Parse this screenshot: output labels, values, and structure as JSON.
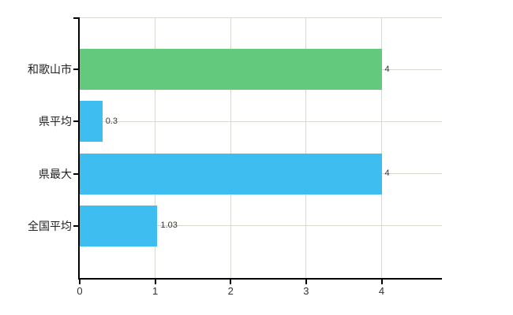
{
  "chart_data": {
    "type": "bar",
    "orientation": "horizontal",
    "title": "",
    "xlabel": "",
    "ylabel": "",
    "categories": [
      "和歌山市",
      "県平均",
      "県最大",
      "全国平均"
    ],
    "values": [
      4,
      0.3,
      4,
      1.03
    ],
    "value_labels": [
      "4",
      "0.3",
      "4",
      "1.03"
    ],
    "bar_colors": [
      "#63c97d",
      "#3ebdf0",
      "#3ebdf0",
      "#3ebdf0"
    ],
    "x_ticks": [
      0,
      1,
      2,
      3,
      4
    ],
    "x_tick_labels": [
      "0",
      "1",
      "2",
      "3",
      "4"
    ],
    "xlim": [
      0,
      4.8
    ],
    "grid": true,
    "legend": "none",
    "colors": {
      "background": "#ffffff",
      "gridline": "#d9d9d2",
      "axis": "#000000",
      "category_text": "#222222",
      "value_text": "#333333",
      "tick_text": "#333333"
    }
  }
}
